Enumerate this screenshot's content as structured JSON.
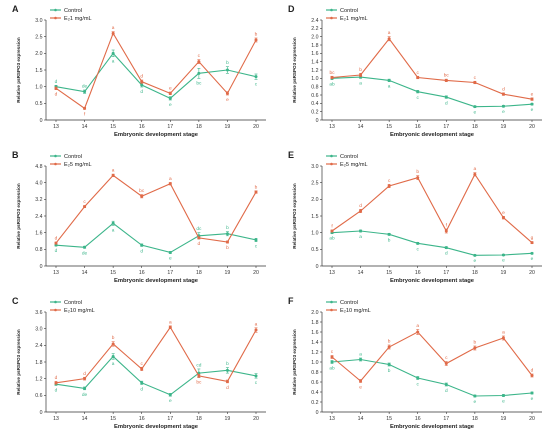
{
  "colors": {
    "control": "#3cb58a",
    "treatment": "#e06a48"
  },
  "chart_data": [
    {
      "panel": "A",
      "type": "line",
      "ylabel": "Relative psRSPO3 expression",
      "xlabel": "Embryonic development stage",
      "categories": [
        "13",
        "14",
        "15",
        "16",
        "17",
        "18",
        "19",
        "20"
      ],
      "ylim": [
        0,
        3.0
      ],
      "yticks": [
        "0",
        "0.5",
        "1.0",
        "1.5",
        "2.0",
        "2.5",
        "3.0"
      ],
      "series": [
        {
          "name": "Control",
          "values": [
            1.0,
            0.85,
            2.0,
            1.05,
            0.65,
            1.4,
            1.5,
            1.3
          ],
          "errors": [
            0.04,
            0.05,
            0.1,
            0.06,
            0.05,
            0.15,
            0.1,
            0.08
          ],
          "labels": [
            "d",
            "de",
            "a",
            "d",
            "e",
            "bc",
            "b",
            "c"
          ]
        },
        {
          "name": "E₂1 mg/mL",
          "values": [
            0.95,
            0.35,
            2.6,
            1.15,
            0.8,
            1.75,
            0.8,
            2.4
          ],
          "errors": [
            0.04,
            0.03,
            0.05,
            0.05,
            0.04,
            0.06,
            0.05,
            0.06
          ],
          "labels": [
            "d",
            "f",
            "a",
            "d",
            "e",
            "c",
            "e",
            "b"
          ]
        }
      ]
    },
    {
      "panel": "B",
      "type": "line",
      "ylabel": "Relative psRSPO3 expression",
      "xlabel": "Embryonic development stage",
      "categories": [
        "13",
        "14",
        "15",
        "16",
        "17",
        "18",
        "19",
        "20"
      ],
      "ylim": [
        0,
        4.8
      ],
      "yticks": [
        "0",
        "0.8",
        "1.6",
        "2.4",
        "3.2",
        "4.0",
        "4.8"
      ],
      "series": [
        {
          "name": "Control",
          "values": [
            1.0,
            0.9,
            2.05,
            1.0,
            0.65,
            1.45,
            1.55,
            1.25
          ],
          "errors": [
            0.04,
            0.05,
            0.1,
            0.06,
            0.05,
            0.15,
            0.1,
            0.08
          ],
          "labels": [
            "d",
            "de",
            "a",
            "d",
            "e",
            "dc",
            "b",
            "c"
          ]
        },
        {
          "name": "E₂5 mg/mL",
          "values": [
            1.1,
            2.85,
            4.35,
            3.35,
            3.95,
            1.35,
            1.15,
            3.55
          ],
          "errors": [
            0.05,
            0.05,
            0.06,
            0.08,
            0.06,
            0.05,
            0.05,
            0.06
          ],
          "labels": [
            "d",
            "c",
            "a",
            "bc",
            "a",
            "d",
            "b",
            "b"
          ]
        }
      ]
    },
    {
      "panel": "C",
      "type": "line",
      "ylabel": "Relative psRSPO3 expression",
      "xlabel": "Embryonic development stage",
      "categories": [
        "13",
        "14",
        "15",
        "16",
        "17",
        "18",
        "19",
        "20"
      ],
      "ylim": [
        0,
        3.6
      ],
      "yticks": [
        "0",
        "0.6",
        "1.2",
        "1.8",
        "2.4",
        "3.0",
        "3.6"
      ],
      "series": [
        {
          "name": "Control",
          "values": [
            1.0,
            0.85,
            2.0,
            1.05,
            0.62,
            1.4,
            1.5,
            1.3
          ],
          "errors": [
            0.04,
            0.05,
            0.1,
            0.06,
            0.05,
            0.15,
            0.1,
            0.08
          ],
          "labels": [
            "d",
            "de",
            "a",
            "d",
            "e",
            "cd",
            "b",
            "c"
          ]
        },
        {
          "name": "E₂10 mg/mL",
          "values": [
            1.05,
            1.2,
            2.45,
            1.55,
            3.05,
            1.3,
            1.1,
            2.95
          ],
          "errors": [
            0.05,
            0.05,
            0.08,
            0.06,
            0.05,
            0.06,
            0.05,
            0.08
          ],
          "labels": [
            "d",
            "d",
            "b",
            "c",
            "a",
            "bc",
            "d",
            "a"
          ]
        }
      ]
    },
    {
      "panel": "D",
      "type": "line",
      "ylabel": "Relative psRSPO3 expression",
      "xlabel": "Embryonic development stage",
      "categories": [
        "13",
        "14",
        "15",
        "16",
        "17",
        "18",
        "19",
        "20"
      ],
      "ylim": [
        0,
        2.4
      ],
      "yticks": [
        "0",
        "0.2",
        "0.4",
        "0.6",
        "0.8",
        "1.0",
        "1.2",
        "1.4",
        "1.6",
        "1.8",
        "2.0",
        "2.2",
        "2.4"
      ],
      "series": [
        {
          "name": "Control",
          "values": [
            1.0,
            1.03,
            0.95,
            0.68,
            0.55,
            0.32,
            0.33,
            0.38
          ],
          "errors": [
            0.03,
            0.03,
            0.03,
            0.03,
            0.03,
            0.02,
            0.02,
            0.02
          ],
          "labels": [
            "ab",
            "a",
            "a",
            "c",
            "d",
            "e",
            "e",
            "e"
          ]
        },
        {
          "name": "E₂1 mg/mL",
          "values": [
            1.02,
            1.08,
            1.95,
            1.02,
            0.95,
            0.9,
            0.62,
            0.5
          ],
          "errors": [
            0.03,
            0.04,
            0.05,
            0.03,
            0.03,
            0.03,
            0.03,
            0.03
          ],
          "labels": [
            "bc",
            "b",
            "a",
            "c",
            "bc",
            "c",
            "d",
            "e"
          ]
        }
      ]
    },
    {
      "panel": "E",
      "type": "line",
      "ylabel": "Relative psRSPO3 expression",
      "xlabel": "Embryonic development stage",
      "categories": [
        "13",
        "14",
        "15",
        "16",
        "17",
        "18",
        "19",
        "20"
      ],
      "ylim": [
        0,
        3.0
      ],
      "yticks": [
        "0",
        "0.5",
        "1.0",
        "1.5",
        "2.0",
        "2.5",
        "3.0"
      ],
      "series": [
        {
          "name": "Control",
          "values": [
            1.0,
            1.05,
            0.95,
            0.68,
            0.55,
            0.32,
            0.33,
            0.38
          ],
          "errors": [
            0.03,
            0.03,
            0.03,
            0.03,
            0.03,
            0.02,
            0.02,
            0.02
          ],
          "labels": [
            "ab",
            "a",
            "b",
            "c",
            "d",
            "e",
            "e",
            "e"
          ]
        },
        {
          "name": "E₂5 mg/mL",
          "values": [
            1.05,
            1.65,
            2.4,
            2.65,
            1.05,
            2.75,
            1.45,
            0.7
          ],
          "errors": [
            0.03,
            0.05,
            0.05,
            0.06,
            0.06,
            0.05,
            0.04,
            0.03
          ],
          "labels": [
            "f",
            "d",
            "c",
            "b",
            "f",
            "a",
            "e",
            "g"
          ]
        }
      ]
    },
    {
      "panel": "F",
      "type": "line",
      "ylabel": "Relative psRSPO3 expression",
      "xlabel": "Embryonic development stage",
      "categories": [
        "13",
        "14",
        "15",
        "16",
        "17",
        "18",
        "19",
        "20"
      ],
      "ylim": [
        0,
        2.0
      ],
      "yticks": [
        "0",
        "0.2",
        "0.4",
        "0.6",
        "0.8",
        "1.0",
        "1.2",
        "1.4",
        "1.6",
        "1.8",
        "2.0"
      ],
      "series": [
        {
          "name": "Control",
          "values": [
            1.0,
            1.05,
            0.95,
            0.68,
            0.55,
            0.32,
            0.33,
            0.38
          ],
          "errors": [
            0.03,
            0.03,
            0.03,
            0.03,
            0.03,
            0.02,
            0.02,
            0.02
          ],
          "labels": [
            "ab",
            "a",
            "b",
            "c",
            "d",
            "e",
            "e",
            "e"
          ]
        },
        {
          "name": "E₂10 mg/mL",
          "values": [
            1.1,
            0.62,
            1.3,
            1.6,
            0.97,
            1.28,
            1.48,
            0.73
          ],
          "errors": [
            0.03,
            0.03,
            0.04,
            0.05,
            0.04,
            0.04,
            0.04,
            0.03
          ],
          "labels": [
            "c",
            "e",
            "b",
            "a",
            "c",
            "b",
            "a",
            "d"
          ]
        }
      ]
    }
  ]
}
